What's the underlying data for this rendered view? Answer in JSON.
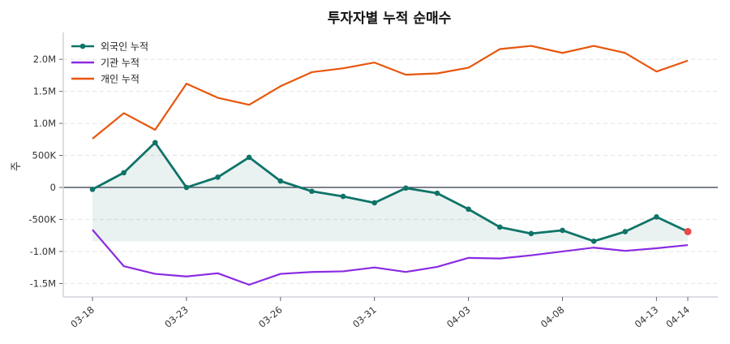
{
  "chart_data": {
    "type": "line",
    "title": "투자자별 누적 순매수",
    "xlabel": "",
    "ylabel": "주",
    "ylim": [
      -1710000,
      2420000
    ],
    "grid": "horizontal-dashed",
    "legend_placement": "top-left",
    "y_ticks": [
      {
        "value": 2000000,
        "label": "2.0M"
      },
      {
        "value": 1500000,
        "label": "1.5M"
      },
      {
        "value": 1000000,
        "label": "1.0M"
      },
      {
        "value": 500000,
        "label": "500K"
      },
      {
        "value": 0,
        "label": "0"
      },
      {
        "value": -500000,
        "label": "-500K"
      },
      {
        "value": -1000000,
        "label": "-1.0M"
      },
      {
        "value": -1500000,
        "label": "-1.5M"
      }
    ],
    "x_ticks": [
      {
        "index": 0,
        "label": "03-18"
      },
      {
        "index": 3,
        "label": "03-23"
      },
      {
        "index": 6,
        "label": "03-26"
      },
      {
        "index": 9,
        "label": "03-31"
      },
      {
        "index": 12,
        "label": "04-03"
      },
      {
        "index": 15,
        "label": "04-08"
      },
      {
        "index": 18,
        "label": "04-13"
      },
      {
        "index": 19,
        "label": "04-14"
      }
    ],
    "series": [
      {
        "name": "외국인 누적",
        "color": "#0f7468",
        "markers": true,
        "fill_to_min": true,
        "last_point_color": "#e84a4a",
        "values": [
          -30000,
          230000,
          700000,
          0,
          160000,
          470000,
          100000,
          -60000,
          -140000,
          -240000,
          -10000,
          -90000,
          -340000,
          -620000,
          -720000,
          -670000,
          -840000,
          -690000,
          -460000,
          -690000
        ]
      },
      {
        "name": "기관 누적",
        "color": "#8a2be2",
        "markers": false,
        "values": [
          -660000,
          -1230000,
          -1350000,
          -1390000,
          -1340000,
          -1520000,
          -1350000,
          -1320000,
          -1310000,
          -1250000,
          -1320000,
          -1240000,
          -1100000,
          -1110000,
          -1060000,
          -1000000,
          -940000,
          -990000,
          -950000,
          -900000
        ]
      },
      {
        "name": "개인 누적",
        "color": "#e8560c",
        "markers": false,
        "values": [
          760000,
          1160000,
          900000,
          1620000,
          1400000,
          1290000,
          1580000,
          1800000,
          1860000,
          1950000,
          1760000,
          1780000,
          1870000,
          2160000,
          2210000,
          2100000,
          2210000,
          2100000,
          1810000,
          1980000
        ]
      }
    ]
  }
}
